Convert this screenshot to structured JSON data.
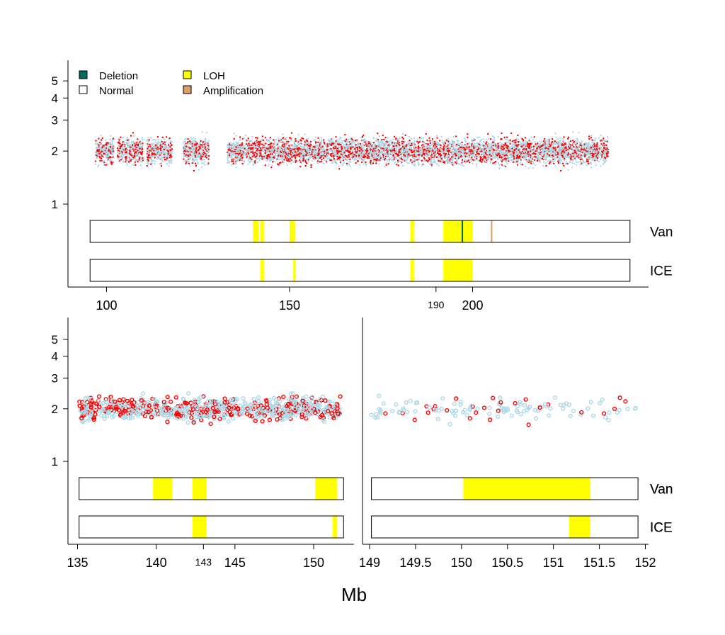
{
  "colors": {
    "deletion": "#006b5f",
    "normal": "#ffffff",
    "loh": "#ffff00",
    "amplification": "#d9a066",
    "normal_points": "#add8e6",
    "red_points": "#ff0000"
  },
  "legend": [
    {
      "label": "Deletion",
      "color": "#006b5f"
    },
    {
      "label": "LOH",
      "color": "#ffff00"
    },
    {
      "label": "Normal",
      "color": "#ffffff"
    },
    {
      "label": "Amplification",
      "color": "#d9a066"
    }
  ],
  "xlabel": "Mb",
  "chart_data": [
    {
      "type": "scatter",
      "panel": "top",
      "ytick_labels": [
        "1",
        "2",
        "3",
        "4",
        "5"
      ],
      "ytick_values": [
        1,
        2,
        3,
        4,
        5
      ],
      "xtick_labels": [
        "100",
        "150",
        "190",
        "200"
      ],
      "xtick_values": [
        100,
        150,
        190,
        200
      ],
      "xlim": [
        90,
        240
      ],
      "ylog": true,
      "point_ranges": [
        [
          97,
          102
        ],
        [
          103,
          110
        ],
        [
          111,
          118
        ],
        [
          121,
          128
        ],
        [
          133,
          140
        ],
        [
          140,
          150
        ],
        [
          150,
          160
        ],
        [
          160,
          170
        ],
        [
          170,
          180
        ],
        [
          180,
          190
        ],
        [
          190,
          200
        ],
        [
          200,
          211
        ],
        [
          211,
          220
        ],
        [
          220,
          230
        ],
        [
          230,
          237
        ]
      ],
      "point_density": "dense, small dots",
      "tracks": [
        {
          "name": "Van",
          "start": 95.5,
          "end": 243,
          "segments": [
            {
              "type": "loh",
              "start": 140,
              "end": 141.5
            },
            {
              "type": "loh",
              "start": 142,
              "end": 143
            },
            {
              "type": "loh",
              "start": 150,
              "end": 151.5
            },
            {
              "type": "loh",
              "start": 183,
              "end": 184
            },
            {
              "type": "loh",
              "start": 192,
              "end": 200
            },
            {
              "type": "deletion",
              "start": 197,
              "end": 197.4
            },
            {
              "type": "amplification",
              "start": 205,
              "end": 205.4
            }
          ]
        },
        {
          "name": "ICE",
          "start": 95.5,
          "end": 243,
          "segments": [
            {
              "type": "loh",
              "start": 142,
              "end": 143
            },
            {
              "type": "loh",
              "start": 151,
              "end": 151.6
            },
            {
              "type": "loh",
              "start": 183,
              "end": 184
            },
            {
              "type": "loh",
              "start": 192,
              "end": 200
            }
          ]
        }
      ]
    },
    {
      "type": "scatter",
      "panel": "bottom-left",
      "ytick_labels": [
        "1",
        "2",
        "3",
        "4",
        "5"
      ],
      "ytick_values": [
        1,
        2,
        3,
        4,
        5
      ],
      "xtick_labels": [
        "135",
        "140",
        "143",
        "145",
        "150"
      ],
      "xtick_values": [
        135,
        140,
        143,
        145,
        150
      ],
      "xlim": [
        134.6,
        152.4
      ],
      "ylog": true,
      "point_range": [
        135.1,
        151.7
      ],
      "tracks": [
        {
          "name": "Van",
          "start": 135.1,
          "end": 151.9,
          "segments": [
            {
              "type": "loh",
              "start": 139.8,
              "end": 141
            },
            {
              "type": "loh",
              "start": 142.3,
              "end": 143.2
            },
            {
              "type": "loh",
              "start": 150.1,
              "end": 151.5
            }
          ]
        },
        {
          "name": "ICE",
          "start": 135.1,
          "end": 151.9,
          "segments": [
            {
              "type": "loh",
              "start": 142.3,
              "end": 143.2
            },
            {
              "type": "loh",
              "start": 151.2,
              "end": 151.5
            }
          ]
        }
      ]
    },
    {
      "type": "scatter",
      "panel": "bottom-right",
      "xtick_labels": [
        "149",
        "149.5",
        "150",
        "150.5",
        "151",
        "151.5",
        "152"
      ],
      "xtick_values": [
        149,
        149.5,
        150,
        150.5,
        151,
        151.5,
        152
      ],
      "xlim": [
        148.97,
        152.03
      ],
      "ylog": true,
      "point_range": [
        149.02,
        151.92
      ],
      "tracks": [
        {
          "name": "Van",
          "start": 149.02,
          "end": 151.92,
          "segments": [
            {
              "type": "loh",
              "start": 150.02,
              "end": 151.4
            }
          ]
        },
        {
          "name": "ICE",
          "start": 149.02,
          "end": 151.92,
          "segments": [
            {
              "type": "loh",
              "start": 151.17,
              "end": 151.4
            }
          ]
        }
      ]
    }
  ]
}
